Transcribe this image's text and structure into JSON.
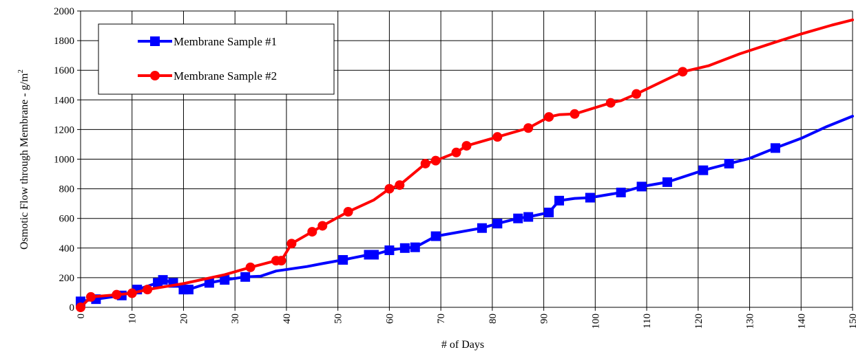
{
  "chart_data": {
    "type": "line",
    "xlabel": "# of Days",
    "ylabel": "Osmotic Flow through Membrane - g/m",
    "ylabel_sup": "2",
    "xlim": [
      0,
      150
    ],
    "ylim": [
      0,
      2000
    ],
    "xticks": [
      0,
      10,
      20,
      30,
      40,
      50,
      60,
      70,
      80,
      90,
      100,
      110,
      120,
      130,
      140,
      150
    ],
    "yticks": [
      0,
      200,
      400,
      600,
      800,
      1000,
      1200,
      1400,
      1600,
      1800,
      2000
    ],
    "grid": true,
    "legend_position": "top-left",
    "series": [
      {
        "name": "Membrane Sample #1",
        "color": "#0000ff",
        "marker": "square",
        "line": [
          [
            0,
            40
          ],
          [
            2,
            50
          ],
          [
            3,
            55
          ],
          [
            8,
            80
          ],
          [
            11,
            120
          ],
          [
            15,
            165
          ],
          [
            16,
            185
          ],
          [
            18,
            165
          ],
          [
            20,
            120
          ],
          [
            21,
            120
          ],
          [
            25,
            165
          ],
          [
            28,
            185
          ],
          [
            32,
            205
          ],
          [
            35,
            210
          ],
          [
            38,
            245
          ],
          [
            44,
            275
          ],
          [
            47,
            295
          ],
          [
            51,
            320
          ],
          [
            56,
            355
          ],
          [
            57,
            355
          ],
          [
            60,
            385
          ],
          [
            63,
            400
          ],
          [
            65,
            405
          ],
          [
            69,
            480
          ],
          [
            78,
            535
          ],
          [
            81,
            565
          ],
          [
            85,
            600
          ],
          [
            87,
            610
          ],
          [
            91,
            640
          ],
          [
            93,
            720
          ],
          [
            96,
            735
          ],
          [
            99,
            740
          ],
          [
            105,
            775
          ],
          [
            109,
            815
          ],
          [
            114,
            845
          ],
          [
            121,
            925
          ],
          [
            126,
            970
          ],
          [
            130,
            1005
          ],
          [
            135,
            1075
          ],
          [
            140,
            1140
          ],
          [
            145,
            1220
          ],
          [
            150,
            1290
          ]
        ],
        "markers": [
          [
            0,
            40
          ],
          [
            3,
            55
          ],
          [
            8,
            80
          ],
          [
            11,
            120
          ],
          [
            15,
            165
          ],
          [
            16,
            185
          ],
          [
            18,
            165
          ],
          [
            20,
            120
          ],
          [
            21,
            120
          ],
          [
            25,
            165
          ],
          [
            28,
            185
          ],
          [
            32,
            205
          ],
          [
            51,
            320
          ],
          [
            56,
            355
          ],
          [
            57,
            355
          ],
          [
            60,
            385
          ],
          [
            63,
            400
          ],
          [
            65,
            405
          ],
          [
            69,
            480
          ],
          [
            78,
            535
          ],
          [
            81,
            565
          ],
          [
            85,
            600
          ],
          [
            87,
            610
          ],
          [
            91,
            640
          ],
          [
            93,
            720
          ],
          [
            99,
            740
          ],
          [
            105,
            775
          ],
          [
            109,
            815
          ],
          [
            114,
            845
          ],
          [
            121,
            925
          ],
          [
            126,
            970
          ],
          [
            135,
            1075
          ]
        ]
      },
      {
        "name": "Membrane Sample #2",
        "color": "#ff0000",
        "marker": "circle",
        "line": [
          [
            0,
            0
          ],
          [
            2,
            70
          ],
          [
            7,
            85
          ],
          [
            10,
            95
          ],
          [
            13,
            120
          ],
          [
            20,
            160
          ],
          [
            28,
            220
          ],
          [
            33,
            270
          ],
          [
            38,
            315
          ],
          [
            39,
            315
          ],
          [
            41,
            430
          ],
          [
            45,
            510
          ],
          [
            47,
            550
          ],
          [
            52,
            645
          ],
          [
            57,
            725
          ],
          [
            60,
            800
          ],
          [
            62,
            825
          ],
          [
            67,
            970
          ],
          [
            69,
            990
          ],
          [
            73,
            1045
          ],
          [
            75,
            1090
          ],
          [
            81,
            1150
          ],
          [
            87,
            1210
          ],
          [
            91,
            1285
          ],
          [
            93,
            1300
          ],
          [
            96,
            1305
          ],
          [
            103,
            1380
          ],
          [
            105,
            1395
          ],
          [
            108,
            1440
          ],
          [
            114,
            1540
          ],
          [
            117,
            1590
          ],
          [
            122,
            1630
          ],
          [
            128,
            1710
          ],
          [
            135,
            1790
          ],
          [
            140,
            1845
          ],
          [
            146,
            1905
          ],
          [
            150,
            1940
          ]
        ],
        "markers": [
          [
            0,
            0
          ],
          [
            2,
            70
          ],
          [
            7,
            85
          ],
          [
            10,
            95
          ],
          [
            13,
            120
          ],
          [
            33,
            270
          ],
          [
            38,
            315
          ],
          [
            39,
            315
          ],
          [
            41,
            430
          ],
          [
            45,
            510
          ],
          [
            47,
            550
          ],
          [
            52,
            645
          ],
          [
            60,
            800
          ],
          [
            62,
            825
          ],
          [
            67,
            970
          ],
          [
            69,
            990
          ],
          [
            73,
            1045
          ],
          [
            75,
            1090
          ],
          [
            81,
            1150
          ],
          [
            87,
            1210
          ],
          [
            91,
            1285
          ],
          [
            96,
            1305
          ],
          [
            103,
            1380
          ],
          [
            108,
            1440
          ],
          [
            117,
            1590
          ]
        ]
      }
    ]
  }
}
